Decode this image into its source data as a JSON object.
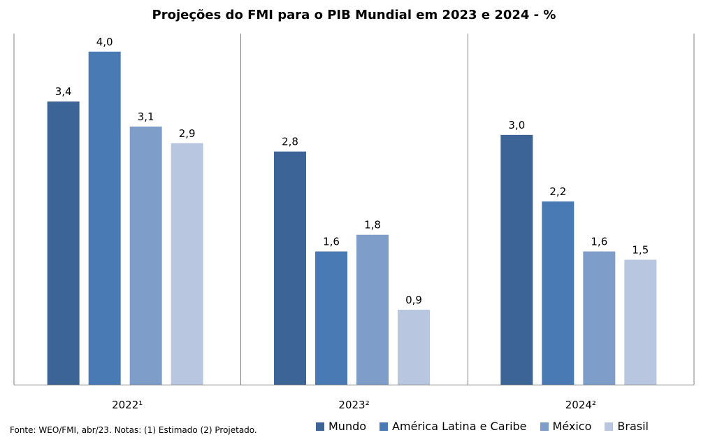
{
  "chart_data": {
    "type": "bar",
    "title": "Projeções do FMI para o PIB Mundial em 2023 e 2024 - %",
    "categories": [
      "2022¹",
      "2023²",
      "2024²"
    ],
    "series": [
      {
        "name": "Mundo",
        "color": "#3C6496",
        "values": [
          3.4,
          2.8,
          3.0
        ],
        "labels": [
          "3,4",
          "2,8",
          "3,0"
        ]
      },
      {
        "name": "América Latina e Caribe",
        "color": "#4A7AB3",
        "values": [
          4.0,
          1.6,
          2.2
        ],
        "labels": [
          "4,0",
          "1,6",
          "2,2"
        ]
      },
      {
        "name": "México",
        "color": "#7E9DC8",
        "values": [
          3.1,
          1.8,
          1.6
        ],
        "labels": [
          "3,1",
          "1,8",
          "1,6"
        ]
      },
      {
        "name": "Brasil",
        "color": "#B8C6DF",
        "values": [
          2.9,
          0.9,
          1.5
        ],
        "labels": [
          "2,9",
          "0,9",
          "1,5"
        ]
      }
    ],
    "ylim": [
      0,
      4.2
    ],
    "xlabel": "",
    "ylabel": "",
    "grid": false,
    "legend_position": "bottom-right"
  },
  "footer": {
    "source": "Fonte: WEO/FMI, abr/23. Notas: (1) Estimado (2) Projetado."
  }
}
